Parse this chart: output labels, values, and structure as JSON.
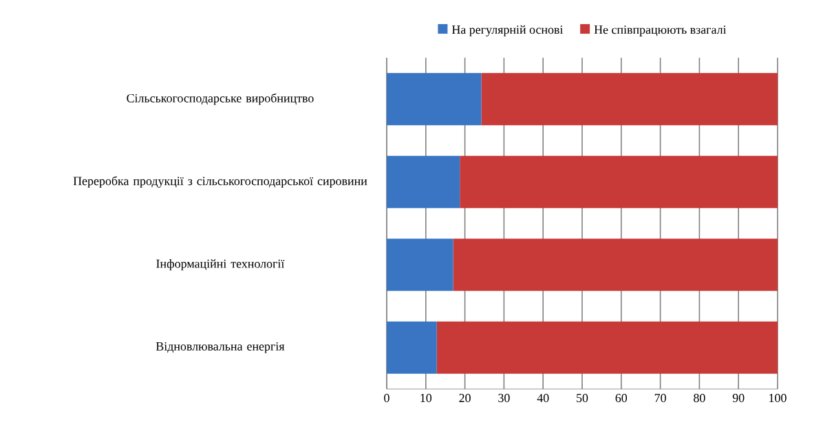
{
  "chart_data": {
    "type": "bar",
    "orientation": "horizontal",
    "stacked": true,
    "categories": [
      "Сільськогосподарське виробництво",
      "Переробка продукції з сільськогосподарської сировини",
      "Інформаційні технології",
      "Відновлювальна енергія"
    ],
    "series": [
      {
        "name": "На регулярній основі",
        "color": "#3a75c4",
        "values": [
          24.2,
          18.7,
          17.0,
          12.8
        ]
      },
      {
        "name": "Не співпрацюють взагалі",
        "color": "#c83a38",
        "values": [
          75.8,
          81.3,
          83.0,
          87.2
        ]
      }
    ],
    "xlim": [
      0,
      100
    ],
    "xticks": [
      0,
      10,
      20,
      30,
      40,
      50,
      60,
      70,
      80,
      90,
      100
    ],
    "grid": "x",
    "legend": "top"
  }
}
